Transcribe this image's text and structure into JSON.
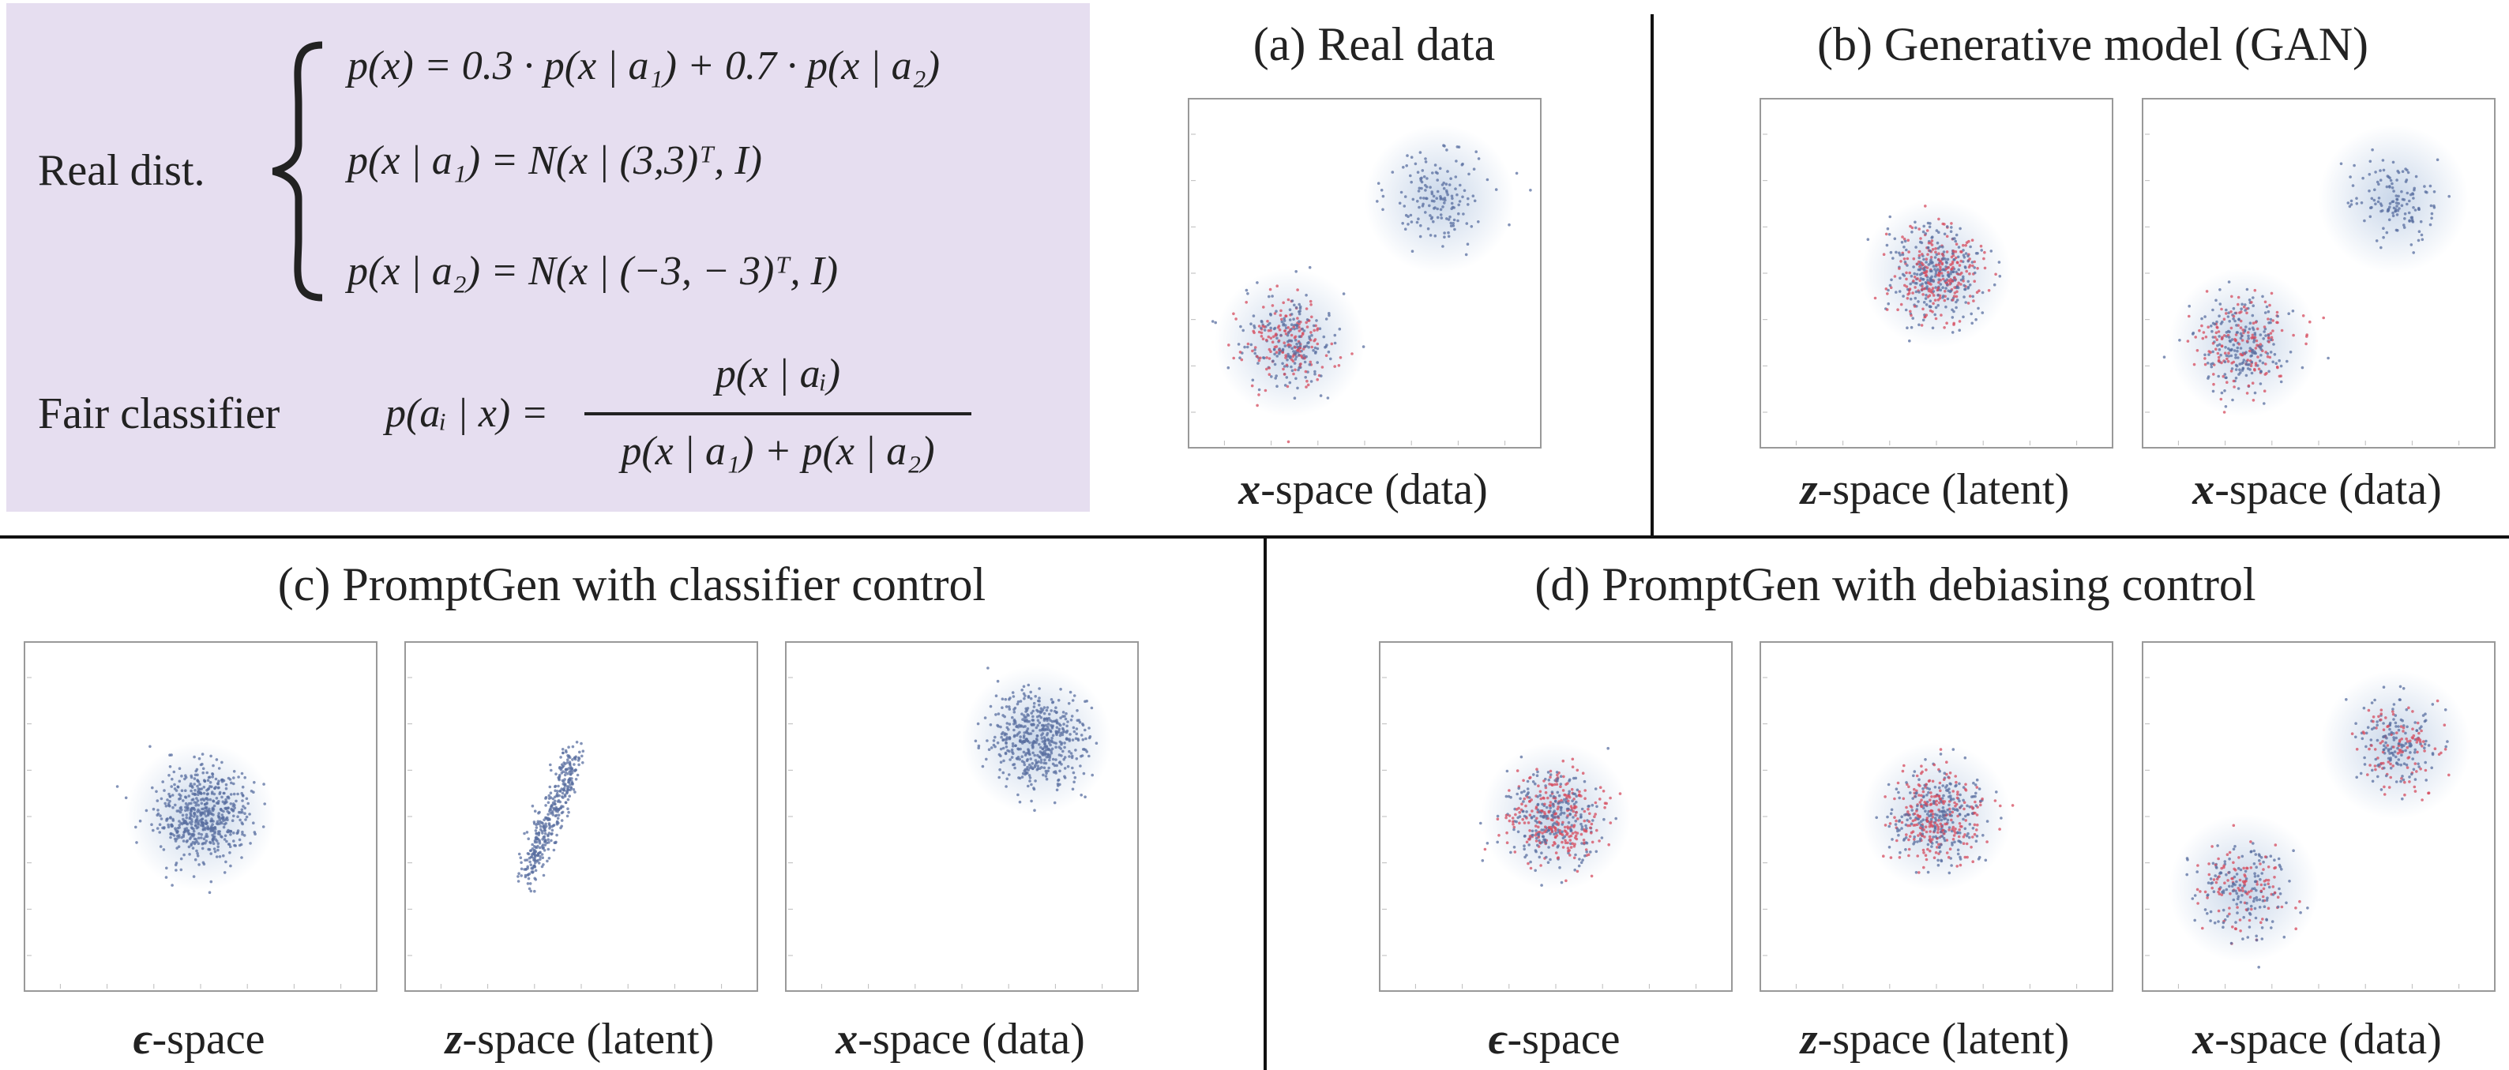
{
  "formula": {
    "real_dist_label": "Real dist.",
    "eq1": "p(x) = 0.3 · p(x | a₁) + 0.7 · p(x | a₂)",
    "eq2": "p(x | a₁) = N(x | (3,3)ᵀ, I)",
    "eq3": "p(x | a₂) = N(x | (−3, − 3)ᵀ, I)",
    "fair_label": "Fair classifier",
    "fair_lhs": "p(aᵢ | x) =",
    "fair_num": "p(x | aᵢ)",
    "fair_den": "p(x | a₁) + p(x | a₂)"
  },
  "panels": {
    "a": {
      "title": "(a) Real data",
      "labels": [
        "x-space (data)"
      ]
    },
    "b": {
      "title": "(b) Generative model (GAN)",
      "labels": [
        "z-space (latent)",
        "x-space (data)"
      ]
    },
    "c": {
      "title": "(c) PromptGen with classifier control",
      "labels": [
        "ϵ-space",
        "z-space (latent)",
        "x-space (data)"
      ]
    },
    "d": {
      "title": "(d) PromptGen with debiasing control",
      "labels": [
        "ϵ-space",
        "z-space (latent)",
        "x-space (data)"
      ]
    }
  },
  "label_parts": {
    "x_sym": "x",
    "z_sym": "z",
    "eps_sym": "ϵ",
    "data_suffix": "-space (data)",
    "latent_suffix": "-space (latent)",
    "eps_suffix": "-space"
  },
  "colors": {
    "box_bg": "#e6def0",
    "point_blue": "#5a6fa0",
    "point_red": "#d64b5e",
    "density": "#9db6d8"
  }
}
